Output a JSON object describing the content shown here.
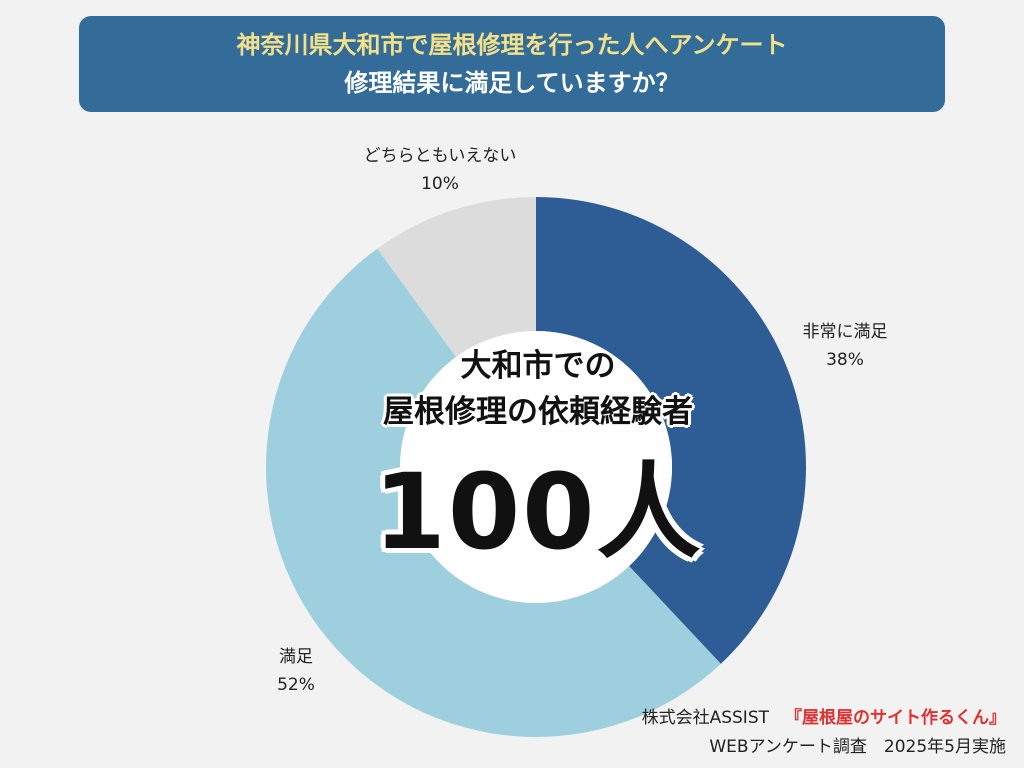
{
  "header": {
    "line1": "神奈川県大和市で屋根修理を行った人へアンケート",
    "line2": "修理結果に満足していますか？"
  },
  "center": {
    "line1": "大和市での",
    "line2": "屋根修理の依頼経験者",
    "count": "100人"
  },
  "footer": {
    "company": "株式会社ASSIST",
    "brand": "『屋根屋のサイト作るくん』",
    "survey": "WEBアンケート調査　2025年5月実施"
  },
  "chart_data": {
    "type": "pie",
    "donut": true,
    "slices": [
      {
        "label": "非常に満足",
        "value": 38,
        "display": "38%",
        "color": "#2e5c94"
      },
      {
        "label": "満足",
        "value": 52,
        "display": "52%",
        "color": "#9ecfdf"
      },
      {
        "label": "どちらともいえない",
        "value": 10,
        "display": "10%",
        "color": "#dcdcdc"
      }
    ]
  }
}
